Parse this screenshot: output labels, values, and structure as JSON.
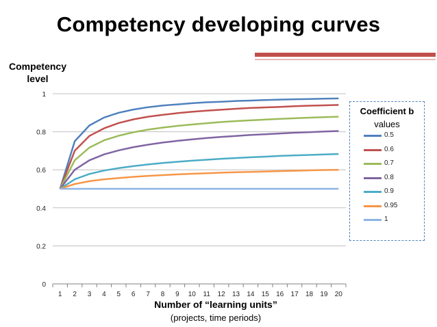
{
  "slide": {
    "title": "Competency developing curves"
  },
  "chart_data": {
    "type": "line",
    "ylabel_line1": "Competency",
    "ylabel_line2": "level",
    "xlabel": "Number of “learning units”",
    "xlabel_sub": "(projects, time periods)",
    "x": [
      1,
      2,
      3,
      4,
      5,
      6,
      7,
      8,
      9,
      10,
      11,
      12,
      13,
      14,
      15,
      16,
      17,
      18,
      19,
      20
    ],
    "ylim": [
      0,
      1
    ],
    "yticks": [
      "0",
      "0.2",
      "0.4",
      "0.6",
      "0.8",
      "1"
    ],
    "grid": "horizontal",
    "legend": {
      "title_bold": "Coefficient b",
      "title_line2": "values",
      "placement": "right"
    },
    "series": [
      {
        "name": "0.5",
        "color": "#4f81bd",
        "values": [
          0.5,
          0.75,
          0.833,
          0.875,
          0.9,
          0.917,
          0.929,
          0.938,
          0.944,
          0.95,
          0.955,
          0.958,
          0.962,
          0.964,
          0.967,
          0.969,
          0.971,
          0.972,
          0.974,
          0.975
        ]
      },
      {
        "name": "0.6",
        "color": "#c0504d",
        "values": [
          0.5,
          0.7,
          0.778,
          0.818,
          0.846,
          0.865,
          0.879,
          0.889,
          0.898,
          0.905,
          0.911,
          0.916,
          0.921,
          0.925,
          0.928,
          0.931,
          0.934,
          0.937,
          0.939,
          0.941
        ]
      },
      {
        "name": "0.7",
        "color": "#9bbb59",
        "values": [
          0.5,
          0.65,
          0.717,
          0.755,
          0.779,
          0.797,
          0.811,
          0.822,
          0.831,
          0.838,
          0.845,
          0.851,
          0.856,
          0.86,
          0.864,
          0.868,
          0.871,
          0.874,
          0.877,
          0.879
        ]
      },
      {
        "name": "0.8",
        "color": "#8064a2",
        "values": [
          0.5,
          0.6,
          0.65,
          0.681,
          0.702,
          0.719,
          0.732,
          0.743,
          0.752,
          0.76,
          0.767,
          0.773,
          0.778,
          0.783,
          0.787,
          0.791,
          0.795,
          0.798,
          0.801,
          0.804
        ]
      },
      {
        "name": "0.9",
        "color": "#4bacc6",
        "values": [
          0.5,
          0.55,
          0.578,
          0.596,
          0.609,
          0.619,
          0.628,
          0.636,
          0.642,
          0.648,
          0.653,
          0.658,
          0.662,
          0.666,
          0.669,
          0.673,
          0.676,
          0.678,
          0.681,
          0.683
        ]
      },
      {
        "name": "0.95",
        "color": "#f79646",
        "values": [
          0.5,
          0.525,
          0.54,
          0.55,
          0.557,
          0.563,
          0.568,
          0.572,
          0.576,
          0.579,
          0.582,
          0.585,
          0.587,
          0.589,
          0.591,
          0.593,
          0.595,
          0.597,
          0.599,
          0.6
        ]
      },
      {
        "name": "1",
        "color": "#8eb4e3",
        "values": [
          0.5,
          0.5,
          0.5,
          0.5,
          0.5,
          0.5,
          0.5,
          0.5,
          0.5,
          0.5,
          0.5,
          0.5,
          0.5,
          0.5,
          0.5,
          0.5,
          0.5,
          0.5,
          0.5,
          0.5
        ]
      }
    ]
  }
}
